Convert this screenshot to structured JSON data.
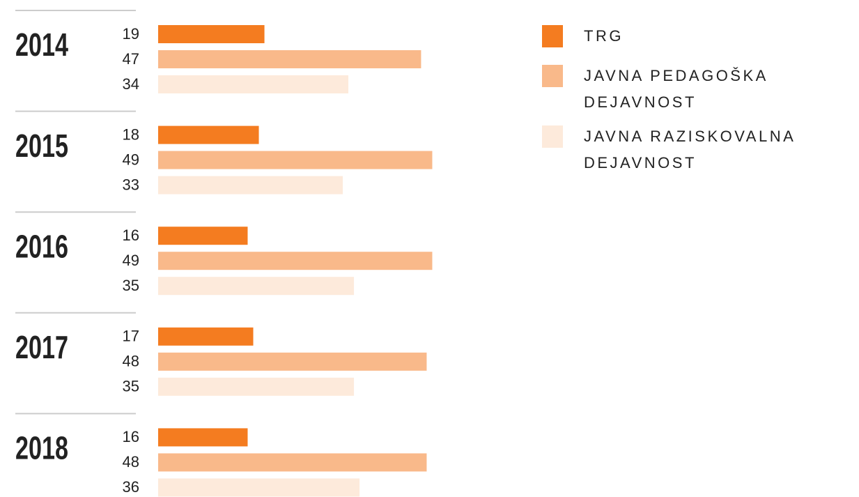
{
  "chart_data": {
    "type": "bar",
    "orientation": "horizontal",
    "categories": [
      "2014",
      "2015",
      "2016",
      "2017",
      "2018"
    ],
    "series": [
      {
        "name": "TRG",
        "color": "#f47c20",
        "values": [
          19,
          18,
          16,
          17,
          16
        ]
      },
      {
        "name": "JAVNA PEDAGOŠKA DEJAVNOST",
        "color": "#f9b98a",
        "values": [
          47,
          49,
          49,
          48,
          48
        ]
      },
      {
        "name": "JAVNA RAZISKOVALNA DEJAVNOST",
        "color": "#fdeadb",
        "values": [
          34,
          33,
          35,
          35,
          36
        ]
      }
    ],
    "legend": "top-right"
  }
}
